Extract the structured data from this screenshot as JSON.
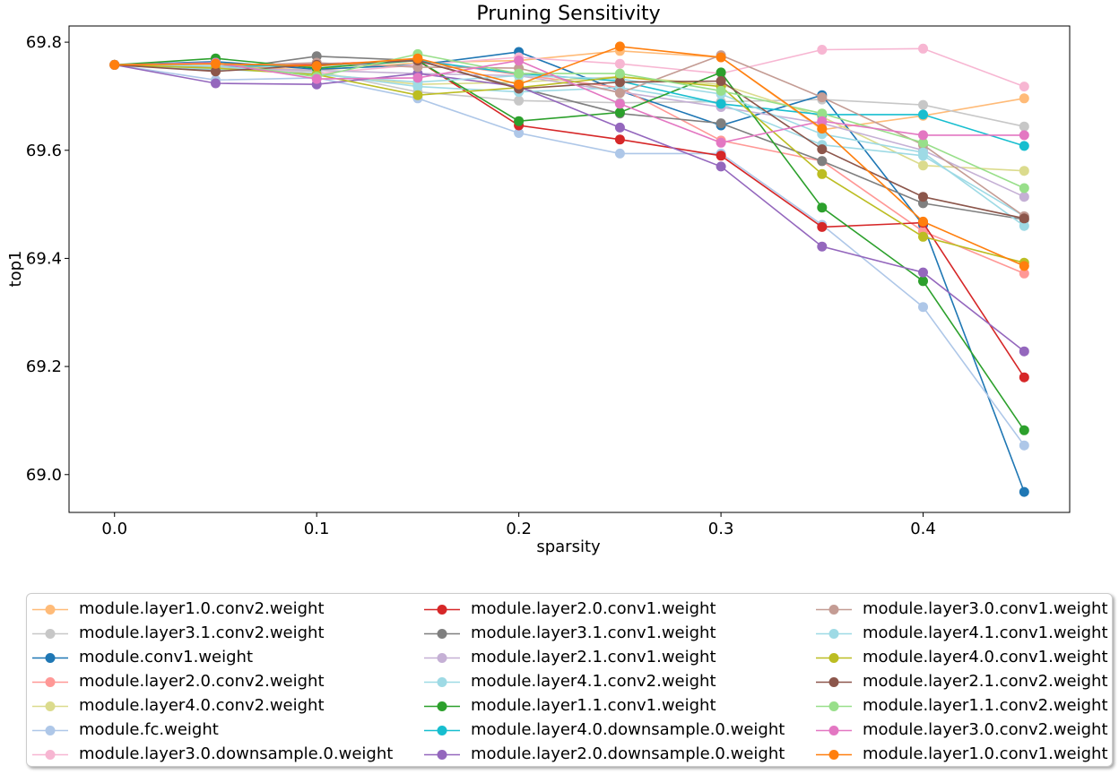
{
  "chart_data": {
    "type": "line",
    "title": "Pruning Sensitivity",
    "xlabel": "sparsity",
    "ylabel": "top1",
    "xlim": [
      -0.0225,
      0.4725
    ],
    "ylim": [
      68.93,
      69.83
    ],
    "xticks": [
      0.0,
      0.1,
      0.2,
      0.3,
      0.4
    ],
    "xtick_labels": [
      "0.0",
      "0.1",
      "0.2",
      "0.3",
      "0.4"
    ],
    "yticks": [
      69.0,
      69.2,
      69.4,
      69.6,
      69.8
    ],
    "ytick_labels": [
      "69.0",
      "69.2",
      "69.4",
      "69.6",
      "69.8"
    ],
    "grid": false,
    "legend_position": "bottom",
    "legend_columns": 3,
    "x": [
      0.0,
      0.05,
      0.1,
      0.15,
      0.2,
      0.25,
      0.3,
      0.35,
      0.4,
      0.45
    ],
    "series": [
      {
        "name": "module.layer1.0.conv2.weight",
        "color": "#ffbb78",
        "values": [
          69.758,
          69.756,
          69.748,
          69.762,
          69.766,
          69.784,
          69.772,
          69.638,
          69.664,
          69.696
        ]
      },
      {
        "name": "module.layer3.1.conv2.weight",
        "color": "#c7c7c7",
        "values": [
          69.758,
          69.752,
          69.746,
          69.708,
          69.692,
          69.688,
          69.69,
          69.694,
          69.684,
          69.644
        ]
      },
      {
        "name": "module.conv1.weight",
        "color": "#1f77b4",
        "values": [
          69.758,
          69.764,
          69.75,
          69.758,
          69.782,
          69.71,
          69.646,
          69.702,
          69.462,
          68.968
        ]
      },
      {
        "name": "module.layer2.0.conv2.weight",
        "color": "#ff9896",
        "values": [
          69.758,
          69.752,
          69.76,
          69.766,
          69.74,
          69.716,
          69.618,
          69.58,
          69.45,
          69.372
        ]
      },
      {
        "name": "module.layer4.0.conv2.weight",
        "color": "#dbdb8d",
        "values": [
          69.758,
          69.754,
          69.742,
          69.722,
          69.726,
          69.736,
          69.722,
          69.662,
          69.572,
          69.562
        ]
      },
      {
        "name": "module.fc.weight",
        "color": "#aec7e8",
        "values": [
          69.758,
          69.73,
          69.734,
          69.696,
          69.632,
          69.594,
          69.594,
          69.462,
          69.31,
          69.054
        ]
      },
      {
        "name": "module.layer3.0.downsample.0.weight",
        "color": "#f7b6d2",
        "values": [
          69.758,
          69.756,
          69.742,
          69.758,
          69.772,
          69.76,
          69.742,
          69.786,
          69.788,
          69.718
        ]
      },
      {
        "name": "module.layer2.0.conv1.weight",
        "color": "#d62728",
        "values": [
          69.758,
          69.756,
          69.758,
          69.766,
          69.646,
          69.62,
          69.59,
          69.458,
          69.466,
          69.18
        ]
      },
      {
        "name": "module.layer3.1.conv1.weight",
        "color": "#7f7f7f",
        "values": [
          69.758,
          69.748,
          69.774,
          69.766,
          69.716,
          69.668,
          69.65,
          69.58,
          69.502,
          69.472
        ]
      },
      {
        "name": "module.layer2.1.conv1.weight",
        "color": "#c5b0d5",
        "values": [
          69.758,
          69.752,
          69.748,
          69.742,
          69.738,
          69.708,
          69.68,
          69.65,
          69.6,
          69.514
        ]
      },
      {
        "name": "module.layer4.1.conv2.weight",
        "color": "#9edae5",
        "values": [
          69.758,
          69.75,
          69.742,
          69.718,
          69.708,
          69.716,
          69.686,
          69.61,
          69.59,
          69.478
        ]
      },
      {
        "name": "module.layer1.1.conv1.weight",
        "color": "#2ca02c",
        "values": [
          69.758,
          69.77,
          69.752,
          69.766,
          69.654,
          69.67,
          69.744,
          69.494,
          69.358,
          69.082
        ]
      },
      {
        "name": "module.layer4.0.downsample.0.weight",
        "color": "#17becf",
        "values": [
          69.758,
          69.756,
          69.756,
          69.766,
          69.742,
          69.728,
          69.686,
          69.666,
          69.666,
          69.608
        ]
      },
      {
        "name": "module.layer2.0.downsample.0.weight",
        "color": "#9467bd",
        "values": [
          69.758,
          69.724,
          69.722,
          69.742,
          69.718,
          69.642,
          69.57,
          69.422,
          69.374,
          69.228
        ]
      },
      {
        "name": "module.layer3.0.conv1.weight",
        "color": "#c49c94",
        "values": [
          69.758,
          69.756,
          69.762,
          69.754,
          69.752,
          69.706,
          69.776,
          69.698,
          69.61,
          69.478
        ]
      },
      {
        "name": "module.layer4.1.conv1.weight",
        "color": "#9edae5",
        "values": [
          69.758,
          69.756,
          69.74,
          69.726,
          69.738,
          69.732,
          69.704,
          69.63,
          69.596,
          69.46
        ]
      },
      {
        "name": "module.layer4.0.conv1.weight",
        "color": "#bcbd22",
        "values": [
          69.758,
          69.752,
          69.74,
          69.702,
          69.716,
          69.736,
          69.718,
          69.556,
          69.44,
          69.392
        ]
      },
      {
        "name": "module.layer2.1.conv2.weight",
        "color": "#8c564b",
        "values": [
          69.758,
          69.746,
          69.758,
          69.766,
          69.714,
          69.726,
          69.728,
          69.602,
          69.514,
          69.474
        ]
      },
      {
        "name": "module.layer1.1.conv2.weight",
        "color": "#98df8a",
        "values": [
          69.758,
          69.762,
          69.736,
          69.778,
          69.742,
          69.742,
          69.71,
          69.668,
          69.614,
          69.53
        ]
      },
      {
        "name": "module.layer3.0.conv2.weight",
        "color": "#e377c2",
        "values": [
          69.758,
          69.762,
          69.732,
          69.734,
          69.766,
          69.686,
          69.614,
          69.654,
          69.628,
          69.628
        ]
      },
      {
        "name": "module.layer1.0.conv1.weight",
        "color": "#ff7f0e",
        "values": [
          69.758,
          69.76,
          69.756,
          69.77,
          69.722,
          69.792,
          69.772,
          69.64,
          69.468,
          69.386
        ]
      }
    ]
  }
}
